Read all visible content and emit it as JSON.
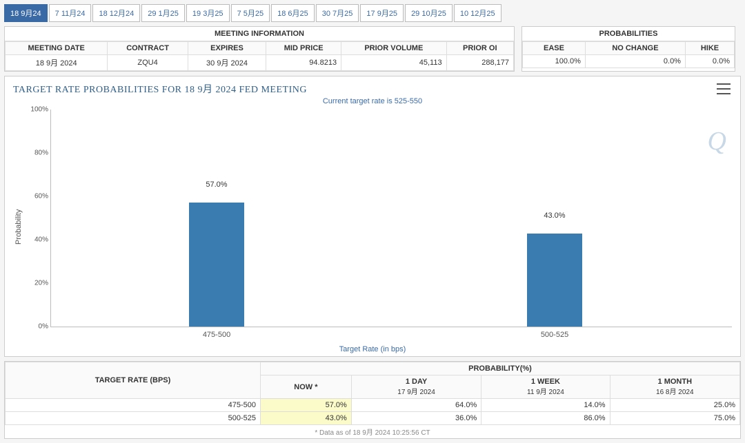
{
  "tabs": [
    {
      "label": "18 9月24",
      "active": true
    },
    {
      "label": "7 11月24",
      "active": false
    },
    {
      "label": "18 12月24",
      "active": false
    },
    {
      "label": "29 1月25",
      "active": false
    },
    {
      "label": "19 3月25",
      "active": false
    },
    {
      "label": "7 5月25",
      "active": false
    },
    {
      "label": "18 6月25",
      "active": false
    },
    {
      "label": "30 7月25",
      "active": false
    },
    {
      "label": "17 9月25",
      "active": false
    },
    {
      "label": "29 10月25",
      "active": false
    },
    {
      "label": "10 12月25",
      "active": false
    }
  ],
  "meeting_info": {
    "header": "MEETING INFORMATION",
    "columns": [
      "MEETING DATE",
      "CONTRACT",
      "EXPIRES",
      "MID PRICE",
      "PRIOR VOLUME",
      "PRIOR OI"
    ],
    "row": [
      "18 9月 2024",
      "ZQU4",
      "30 9月 2024",
      "94.8213",
      "45,113",
      "288,177"
    ]
  },
  "probabilities": {
    "header": "PROBABILITIES",
    "columns": [
      "EASE",
      "NO CHANGE",
      "HIKE"
    ],
    "row": [
      "100.0%",
      "0.0%",
      "0.0%"
    ]
  },
  "chart": {
    "title": "TARGET RATE PROBABILITIES FOR 18 9月 2024 FED MEETING",
    "subtitle": "Current target rate is 525-550",
    "ylabel": "Probability",
    "xlabel": "Target Rate (in bps)",
    "watermark": "Q",
    "ylim": [
      0,
      100
    ],
    "ytick_step": 20,
    "bar_color": "#3a7bb0",
    "categories": [
      "475-500",
      "500-525"
    ],
    "values": [
      57.0,
      43.0
    ],
    "value_labels": [
      "57.0%",
      "43.0%"
    ],
    "y_ticks": [
      "0%",
      "20%",
      "40%",
      "60%",
      "80%",
      "100%"
    ]
  },
  "bottom": {
    "target_header": "TARGET RATE (BPS)",
    "prob_header": "PROBABILITY(%)",
    "periods": [
      {
        "main": "NOW *",
        "sub": ""
      },
      {
        "main": "1 DAY",
        "sub": "17 9月 2024"
      },
      {
        "main": "1 WEEK",
        "sub": "11 9月 2024"
      },
      {
        "main": "1 MONTH",
        "sub": "16 8月 2024"
      }
    ],
    "rows": [
      {
        "rate": "475-500",
        "cells": [
          "57.0%",
          "64.0%",
          "14.0%",
          "25.0%"
        ]
      },
      {
        "rate": "500-525",
        "cells": [
          "43.0%",
          "36.0%",
          "86.0%",
          "75.0%"
        ]
      }
    ],
    "footnote": "* Data as of 18 9月 2024 10:25:56 CT"
  }
}
